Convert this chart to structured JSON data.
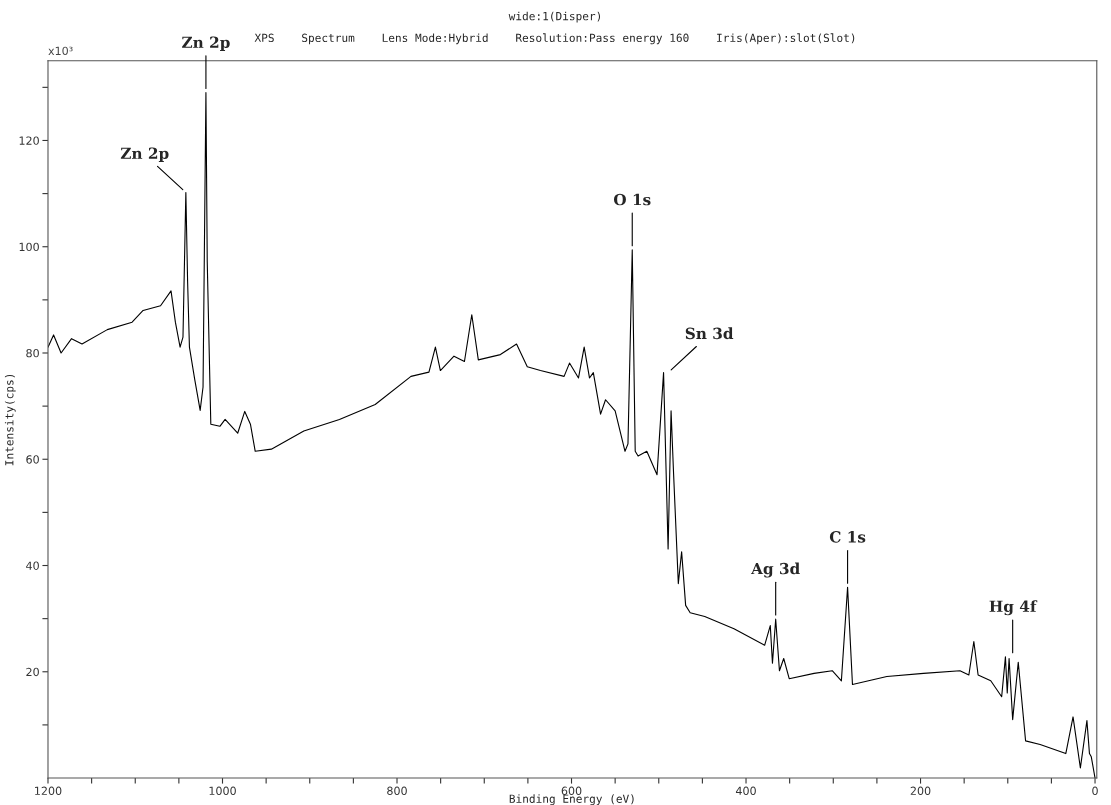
{
  "chart_data": {
    "type": "line",
    "title": "wide:1(Disper)",
    "subtitle": "XPS    Spectrum    Lens Mode:Hybrid    Resolution:Pass energy 160    Iris(Aper):slot(Slot)",
    "xlabel": "Binding Energy (eV)",
    "ylabel": "Intensity(cps)",
    "x": [
      1200,
      1193.6,
      1185,
      1173,
      1161,
      1132,
      1103.6,
      1091,
      1071,
      1059,
      1054,
      1048.6,
      1045.3,
      1042,
      1040,
      1037.9,
      1031.8,
      1025.6,
      1022.3,
      1019,
      1017.5,
      1013.4,
      1003,
      997,
      982.6,
      974.5,
      968,
      962.5,
      944,
      906.8,
      866,
      825,
      784,
      763.4,
      756,
      750.3,
      734.7,
      722.7,
      714.3,
      706.8,
      681.5,
      663,
      650.7,
      635.6,
      608.5,
      602.3,
      592,
      585.5,
      579.4,
      575,
      566.7,
      561,
      550,
      538.7,
      535.3,
      530.4,
      527,
      523.7,
      513.7,
      502,
      494.5,
      489.3,
      485.9,
      483,
      477.6,
      473.8,
      469.2,
      464,
      447.3,
      413.8,
      378.6,
      372.2,
      369.7,
      366,
      361.7,
      356.8,
      350.5,
      322,
      301.2,
      290.7,
      283.6,
      278,
      238.6,
      196.6,
      154.8,
      144.6,
      138.9,
      134,
      119.5,
      107,
      102.7,
      100.6,
      98.5,
      94.4,
      88,
      79.6,
      62.9,
      33.5,
      25.2,
      16.8,
      9.3,
      6.4,
      4.3,
      0
    ],
    "series": [
      {
        "color": "#000000",
        "values": [
          81.1,
          83.4,
          80,
          82.7,
          81.7,
          84.4,
          85.8,
          88,
          88.9,
          91.7,
          85.8,
          81.1,
          83,
          110.2,
          93.5,
          81.1,
          75,
          69.2,
          73.6,
          129,
          97.2,
          66.6,
          66.2,
          67.5,
          64.9,
          69,
          66.6,
          61.5,
          61.9,
          65.3,
          67.5,
          70.3,
          75.6,
          76.4,
          81.1,
          76.7,
          79.4,
          78.4,
          87.2,
          78.7,
          79.7,
          81.7,
          77.4,
          76.7,
          75.6,
          78.1,
          75.3,
          81.1,
          75.3,
          76.3,
          68.5,
          71.2,
          69.1,
          61.5,
          62.9,
          99.4,
          61.5,
          60.6,
          61.5,
          57.1,
          76.3,
          43.1,
          69.1,
          57.2,
          36.6,
          42.6,
          32.5,
          31.1,
          30.4,
          28.1,
          25,
          28.7,
          21.6,
          29.9,
          20.2,
          22.5,
          18.7,
          19.7,
          20.2,
          18.3,
          35.9,
          17.6,
          19.1,
          19.7,
          20.2,
          19.4,
          25.7,
          19.4,
          18.3,
          15.3,
          22.8,
          16,
          22.5,
          11,
          21.8,
          7,
          6.3,
          4.6,
          11.5,
          1.9,
          10.8,
          4.6,
          4,
          0
        ]
      }
    ],
    "xlim": [
      1200,
      -2
    ],
    "ylim": [
      0,
      135
    ],
    "xticks": [
      1200,
      {
        "value": 1150,
        "label": null
      },
      {
        "value": 1100,
        "label": null
      },
      {
        "value": 1050,
        "label": null
      },
      1000,
      {
        "value": 950,
        "label": null
      },
      {
        "value": 900,
        "label": null
      },
      {
        "value": 850,
        "label": null
      },
      800,
      {
        "value": 750,
        "label": null
      },
      {
        "value": 700,
        "label": null
      },
      {
        "value": 650,
        "label": null
      },
      600,
      {
        "value": 550,
        "label": null
      },
      {
        "value": 500,
        "label": null
      },
      {
        "value": 450,
        "label": null
      },
      400,
      {
        "value": 350,
        "label": null
      },
      {
        "value": 300,
        "label": null
      },
      {
        "value": 250,
        "label": null
      },
      200,
      {
        "value": 150,
        "label": null
      },
      {
        "value": 100,
        "label": null
      },
      {
        "value": 50,
        "label": null
      },
      0
    ],
    "yticks": [
      {
        "value": 10,
        "label": null
      },
      20,
      {
        "value": 30,
        "label": null
      },
      40,
      {
        "value": 50,
        "label": null
      },
      60,
      {
        "value": 70,
        "label": null
      },
      80,
      {
        "value": 90,
        "label": null
      },
      100,
      {
        "value": 110,
        "label": null
      },
      120,
      {
        "value": 130,
        "label": null
      }
    ],
    "grid": false,
    "legend": false,
    "marker": "none",
    "line_style": "solid",
    "annotations": [
      "x10³",
      {
        "text": "Zn 2p",
        "x": 1042,
        "y": 110.2
      },
      {
        "text": "Zn 2p",
        "x": 1019,
        "y": 129
      },
      {
        "text": "O 1s",
        "x": 530.4,
        "y": 99.4
      },
      {
        "text": "Sn 3d",
        "x": 489.3,
        "y": 76.3
      },
      {
        "text": "Ag 3d",
        "x": 366,
        "y": 29.9
      },
      {
        "text": "C 1s",
        "x": 283.6,
        "y": 35.9
      },
      {
        "text": "Hg 4f",
        "x": 94.4,
        "y": 22.8
      }
    ]
  }
}
